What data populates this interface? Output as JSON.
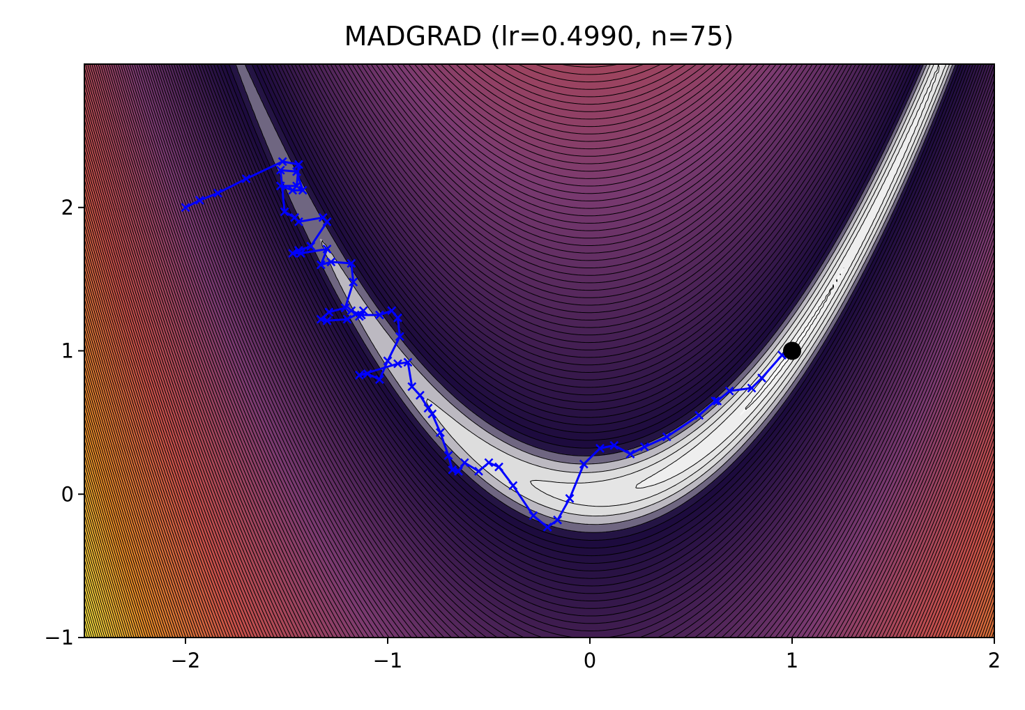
{
  "chart_data": {
    "type": "line",
    "title": "MADGRAD (lr=0.4990, n=75)",
    "xlabel": "",
    "ylabel": "",
    "xlim": [
      -2.5,
      2.0
    ],
    "ylim": [
      -1.0,
      3.0
    ],
    "x_ticks": [
      -2,
      -1,
      0,
      1,
      2
    ],
    "x_tick_labels": [
      "−2",
      "−1",
      "0",
      "1",
      "2"
    ],
    "y_ticks": [
      -1,
      0,
      1,
      2
    ],
    "y_tick_labels": [
      "−1",
      "0",
      "1",
      "2"
    ],
    "grid": false,
    "background": "contour plot of the Rosenbrock function",
    "contour": {
      "function": "rosenbrock",
      "a": 1,
      "b": 100,
      "colormap": [
        "#f9f9f9",
        "#d8d8d8",
        "#1a0a3c",
        "#7a3a70",
        "#c8504a",
        "#e88a28",
        "#f6e640"
      ]
    },
    "minimum": {
      "x": 1.0,
      "y": 1.0,
      "color": "#000000"
    },
    "series": [
      {
        "color": "#0000ff",
        "marker": "x",
        "x": [
          -2.0,
          -1.93,
          -1.84,
          -1.7,
          -1.52,
          -1.44,
          -1.45,
          -1.53,
          -1.47,
          -1.42,
          -1.45,
          -1.53,
          -1.51,
          -1.46,
          -1.44,
          -1.32,
          -1.3,
          -1.38,
          -1.44,
          -1.47,
          -1.43,
          -1.3,
          -1.33,
          -1.28,
          -1.18,
          -1.17,
          -1.21,
          -1.29,
          -1.33,
          -1.3,
          -1.2,
          -1.12,
          -1.14,
          -1.18,
          -1.13,
          -1.04,
          -0.98,
          -0.95,
          -0.94,
          -1.0,
          -1.04,
          -1.1,
          -1.14,
          -0.95,
          -0.9,
          -0.88,
          -0.84,
          -0.8,
          -0.78,
          -0.74,
          -0.7,
          -0.68,
          -0.65,
          -0.62,
          -0.55,
          -0.5,
          -0.45,
          -0.38,
          -0.28,
          -0.21,
          -0.16,
          -0.1,
          -0.03,
          0.05,
          0.12,
          0.2,
          0.27,
          0.38,
          0.54,
          0.62,
          0.63,
          0.69,
          0.8,
          0.85,
          0.95,
          0.98,
          1.0
        ],
        "y": [
          2.0,
          2.05,
          2.1,
          2.2,
          2.32,
          2.3,
          2.15,
          2.15,
          2.12,
          2.12,
          2.25,
          2.26,
          1.97,
          1.93,
          1.9,
          1.93,
          1.9,
          1.73,
          1.7,
          1.68,
          1.68,
          1.71,
          1.6,
          1.62,
          1.61,
          1.48,
          1.3,
          1.27,
          1.22,
          1.21,
          1.22,
          1.28,
          1.24,
          1.28,
          1.25,
          1.25,
          1.28,
          1.23,
          1.1,
          0.93,
          0.8,
          0.84,
          0.83,
          0.91,
          0.92,
          0.75,
          0.69,
          0.6,
          0.56,
          0.43,
          0.27,
          0.17,
          0.16,
          0.22,
          0.16,
          0.22,
          0.19,
          0.06,
          -0.15,
          -0.23,
          -0.18,
          -0.03,
          0.21,
          0.32,
          0.34,
          0.28,
          0.33,
          0.4,
          0.55,
          0.65,
          0.65,
          0.72,
          0.74,
          0.81,
          0.97,
          0.98,
          1.0
        ]
      }
    ]
  }
}
